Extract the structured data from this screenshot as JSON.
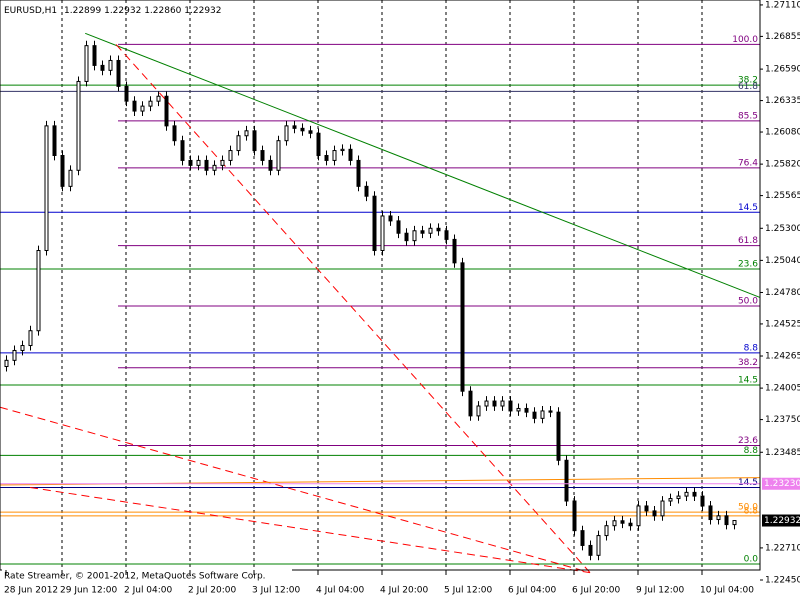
{
  "chart_data": {
    "type": "candlestick",
    "header": {
      "symbol": "EURUSD,H1",
      "prices": [
        "1.22899",
        "1.22932",
        "1.22860",
        "1.22932"
      ]
    },
    "footer": "Rate Streamer, © 2001-2012, MetaQuotes Software Corp.",
    "ylim": [
      1.2245,
      1.2715
    ],
    "yticks": [
      {
        "value": 1.2711,
        "label": "1.27110"
      },
      1.26855,
      {
        "value": 1.2659,
        "label": "1.26590"
      },
      1.26335,
      {
        "value": 1.2608,
        "label": "1.26080"
      },
      {
        "value": 1.2582,
        "label": "1.25820"
      },
      1.25565,
      {
        "value": 1.253,
        "label": "1.25300"
      },
      {
        "value": 1.2504,
        "label": "1.25040"
      },
      {
        "value": 1.2478,
        "label": "1.24780"
      },
      1.24525,
      1.24265,
      1.24005,
      {
        "value": 1.2375,
        "label": "1.23750"
      },
      1.23485,
      {
        "value": 1.2271,
        "label": "1.22710"
      },
      {
        "value": 1.2245,
        "label": "1.22450"
      }
    ],
    "categories": [
      "28 Jun 2012",
      null,
      null,
      null,
      null,
      null,
      null,
      "29 Jun 12:00",
      null,
      null,
      null,
      null,
      null,
      null,
      null,
      "2 Jul 04:00",
      null,
      null,
      null,
      null,
      null,
      null,
      null,
      "2 Jul 20:00",
      null,
      null,
      null,
      null,
      null,
      null,
      null,
      "3 Jul 12:00",
      null,
      null,
      null,
      null,
      null,
      null,
      null,
      "4 Jul 04:00",
      null,
      null,
      null,
      null,
      null,
      null,
      null,
      "4 Jul 20:00",
      null,
      null,
      null,
      null,
      null,
      null,
      null,
      "5 Jul 12:00",
      null,
      null,
      null,
      null,
      null,
      null,
      null,
      "6 Jul 04:00",
      null,
      null,
      null,
      null,
      null,
      null,
      null,
      "6 Jul 20:00",
      null,
      null,
      null,
      null,
      null,
      null,
      null,
      "9 Jul 12:00",
      null,
      null,
      null,
      null,
      null,
      null,
      null,
      "10 Jul 04:00",
      null,
      null,
      null,
      null
    ],
    "candles": [
      [
        1.2418,
        1.2427,
        1.2414,
        1.2423
      ],
      [
        1.2423,
        1.2435,
        1.2419,
        1.2431
      ],
      [
        1.2431,
        1.2439,
        1.2427,
        1.2435
      ],
      [
        1.2435,
        1.2451,
        1.2431,
        1.2447
      ],
      [
        1.2447,
        1.2516,
        1.2443,
        1.2512
      ],
      [
        1.2512,
        1.2617,
        1.2508,
        1.2613
      ],
      [
        1.2613,
        1.2617,
        1.2585,
        1.2589
      ],
      [
        1.2589,
        1.2593,
        1.256,
        1.2564
      ],
      [
        1.2564,
        1.2581,
        1.256,
        1.2577
      ],
      [
        1.2577,
        1.2653,
        1.2573,
        1.2649
      ],
      [
        1.2649,
        1.2682,
        1.2645,
        1.2678
      ],
      [
        1.2678,
        1.2682,
        1.2658,
        1.2662
      ],
      [
        1.2662,
        1.2666,
        1.2654,
        1.2658
      ],
      [
        1.2658,
        1.267,
        1.2654,
        1.2666
      ],
      [
        1.2666,
        1.267,
        1.2641,
        1.2645
      ],
      [
        1.2645,
        1.2649,
        1.2629,
        1.2633
      ],
      [
        1.2633,
        1.2637,
        1.2621,
        1.2625
      ],
      [
        1.2625,
        1.2633,
        1.2621,
        1.2629
      ],
      [
        1.2629,
        1.2637,
        1.2625,
        1.2633
      ],
      [
        1.2633,
        1.2641,
        1.2629,
        1.2637
      ],
      [
        1.2637,
        1.2641,
        1.2609,
        1.2613
      ],
      [
        1.2613,
        1.2617,
        1.2597,
        1.2601
      ],
      [
        1.2601,
        1.2605,
        1.2581,
        1.2585
      ],
      [
        1.2585,
        1.2589,
        1.2577,
        1.2581
      ],
      [
        1.2581,
        1.2589,
        1.2577,
        1.2585
      ],
      [
        1.2585,
        1.2589,
        1.2573,
        1.2577
      ],
      [
        1.2577,
        1.2585,
        1.2573,
        1.2581
      ],
      [
        1.2581,
        1.2589,
        1.2577,
        1.2585
      ],
      [
        1.2585,
        1.2597,
        1.2581,
        1.2593
      ],
      [
        1.2593,
        1.2609,
        1.2589,
        1.2605
      ],
      [
        1.2605,
        1.2613,
        1.2601,
        1.2609
      ],
      [
        1.2609,
        1.2613,
        1.2589,
        1.2593
      ],
      [
        1.2593,
        1.2597,
        1.2581,
        1.2585
      ],
      [
        1.2585,
        1.2589,
        1.2573,
        1.2577
      ],
      [
        1.2577,
        1.2605,
        1.2573,
        1.2601
      ],
      [
        1.2601,
        1.2617,
        1.2597,
        1.2613
      ],
      [
        1.2613,
        1.2617,
        1.2607,
        1.2611
      ],
      [
        1.2611,
        1.2615,
        1.2605,
        1.2609
      ],
      [
        1.2609,
        1.2613,
        1.2603,
        1.2607
      ],
      [
        1.2607,
        1.2611,
        1.2585,
        1.2589
      ],
      [
        1.2589,
        1.2593,
        1.2581,
        1.2585
      ],
      [
        1.2585,
        1.2597,
        1.2581,
        1.2593
      ],
      [
        1.2593,
        1.2598,
        1.2589,
        1.2594
      ],
      [
        1.2594,
        1.2598,
        1.2581,
        1.2585
      ],
      [
        1.2585,
        1.2589,
        1.256,
        1.2564
      ],
      [
        1.2564,
        1.2568,
        1.2552,
        1.2556
      ],
      [
        1.2556,
        1.256,
        1.2508,
        1.2512
      ],
      [
        1.2512,
        1.2544,
        1.2508,
        1.254
      ],
      [
        1.254,
        1.2544,
        1.2532,
        1.2536
      ],
      [
        1.2536,
        1.254,
        1.2522,
        1.2526
      ],
      [
        1.2526,
        1.253,
        1.2516,
        1.252
      ],
      [
        1.252,
        1.2532,
        1.2516,
        1.2528
      ],
      [
        1.2528,
        1.2532,
        1.2522,
        1.2526
      ],
      [
        1.2526,
        1.2534,
        1.2522,
        1.253
      ],
      [
        1.253,
        1.2534,
        1.2524,
        1.2528
      ],
      [
        1.2528,
        1.2532,
        1.2517,
        1.2521
      ],
      [
        1.2521,
        1.2525,
        1.2498,
        1.2502
      ],
      [
        1.2502,
        1.2506,
        1.2394,
        1.2398
      ],
      [
        1.2398,
        1.2402,
        1.2374,
        1.2378
      ],
      [
        1.2378,
        1.239,
        1.2374,
        1.2386
      ],
      [
        1.2386,
        1.2394,
        1.2382,
        1.239
      ],
      [
        1.239,
        1.2394,
        1.2382,
        1.2386
      ],
      [
        1.2386,
        1.2394,
        1.2382,
        1.239
      ],
      [
        1.239,
        1.2394,
        1.2378,
        1.2382
      ],
      [
        1.2382,
        1.2388,
        1.2378,
        1.2384
      ],
      [
        1.2384,
        1.2388,
        1.2377,
        1.2381
      ],
      [
        1.2381,
        1.2385,
        1.2372,
        1.2376
      ],
      [
        1.2376,
        1.2386,
        1.2372,
        1.2382
      ],
      [
        1.2382,
        1.2386,
        1.2377,
        1.2381
      ],
      [
        1.2381,
        1.2385,
        1.2338,
        1.2342
      ],
      [
        1.2342,
        1.2346,
        1.2305,
        1.2309
      ],
      [
        1.2309,
        1.2313,
        1.2281,
        1.2285
      ],
      [
        1.2285,
        1.2289,
        1.2269,
        1.2273
      ],
      [
        1.2273,
        1.2277,
        1.2261,
        1.2265
      ],
      [
        1.2265,
        1.2285,
        1.2261,
        1.2281
      ],
      [
        1.2281,
        1.2293,
        1.2277,
        1.2289
      ],
      [
        1.2289,
        1.2297,
        1.2285,
        1.2293
      ],
      [
        1.2293,
        1.2297,
        1.2287,
        1.2291
      ],
      [
        1.2291,
        1.2295,
        1.2285,
        1.2289
      ],
      [
        1.2289,
        1.2309,
        1.2285,
        1.2305
      ],
      [
        1.2305,
        1.2309,
        1.2297,
        1.2301
      ],
      [
        1.2301,
        1.2305,
        1.2293,
        1.2297
      ],
      [
        1.2297,
        1.2313,
        1.2293,
        1.2309
      ],
      [
        1.2309,
        1.2315,
        1.2305,
        1.2311
      ],
      [
        1.2311,
        1.2317,
        1.2307,
        1.2313
      ],
      [
        1.2313,
        1.232,
        1.2309,
        1.2316
      ],
      [
        1.2316,
        1.232,
        1.2309,
        1.2313
      ],
      [
        1.2313,
        1.2317,
        1.2301,
        1.2305
      ],
      [
        1.2305,
        1.2309,
        1.229,
        1.2294
      ],
      [
        1.2294,
        1.2301,
        1.229,
        1.2297
      ],
      [
        1.2297,
        1.2301,
        1.2286,
        1.22899
      ],
      [
        1.22899,
        1.22932,
        1.2286,
        1.22932
      ]
    ],
    "levels": [
      {
        "label": "100.0",
        "value": 1.2679,
        "color": "#800080",
        "from_index": 14
      },
      {
        "label": "38.2",
        "value": 1.2646,
        "color": "#008000"
      },
      {
        "label": "61.8",
        "value": 1.2641,
        "color": "#333366"
      },
      {
        "label": "85.5",
        "value": 1.2617,
        "color": "#800080",
        "from_index": 14
      },
      {
        "label": "76.4",
        "value": 1.2579,
        "color": "#800080",
        "from_index": 14
      },
      {
        "label": "14.5",
        "value": 1.2543,
        "color": "#0000cd"
      },
      {
        "label": "61.8",
        "value": 1.2516,
        "color": "#800080",
        "from_index": 14
      },
      {
        "label": "23.6",
        "value": 1.2497,
        "color": "#008000"
      },
      {
        "label": "50.0",
        "value": 1.2467,
        "color": "#800080",
        "from_index": 14
      },
      {
        "label": "8.8",
        "value": 1.2429,
        "color": "#0000cd"
      },
      {
        "label": "38.2",
        "value": 1.2417,
        "color": "#800080",
        "from_index": 14
      },
      {
        "label": "14.5",
        "value": 1.2403,
        "color": "#008000"
      },
      {
        "label": "23.6",
        "value": 1.2354,
        "color": "#800080",
        "from_index": 14
      },
      {
        "label": "8.8",
        "value": 1.2346,
        "color": "#008000"
      },
      {
        "label": "14.5",
        "value": 1.232,
        "color": "#000080"
      },
      {
        "label": "50.0",
        "value": 1.23,
        "color": "#ff8c00"
      },
      {
        "label": "8.8",
        "value": 1.2297,
        "color": "#ff8c00"
      },
      {
        "label": "0.0",
        "value": 1.2258,
        "color": "#008000"
      }
    ],
    "trendlines": [
      {
        "from": [
          9.9,
          1.2688
        ],
        "to": [
          94.25,
          1.2474
        ],
        "color": "#008000",
        "dashed": false
      },
      {
        "from": [
          13.75,
          1.2679
        ],
        "to": [
          73,
          1.2251
        ],
        "color": "#ff0000",
        "dashed": true
      },
      {
        "from": [
          -0.75,
          1.2385
        ],
        "to": [
          73,
          1.2251
        ],
        "color": "#ff0000",
        "dashed": true
      },
      {
        "from": [
          3,
          1.232
        ],
        "to": [
          73,
          1.2251
        ],
        "color": "#ff0000",
        "dashed": true
      },
      {
        "from": [
          -0.75,
          1.2322
        ],
        "to": [
          94.25,
          1.2328
        ],
        "color": "#ff8c00",
        "dashed": false
      }
    ],
    "price_labels": [
      {
        "value": 1.2323,
        "label": "1.23230",
        "color": "#ee82ee",
        "text_color": "#ffffff"
      },
      {
        "value": 1.22932,
        "label": "1.22932",
        "color": "#000000",
        "text_color": "#ffffff"
      }
    ]
  }
}
